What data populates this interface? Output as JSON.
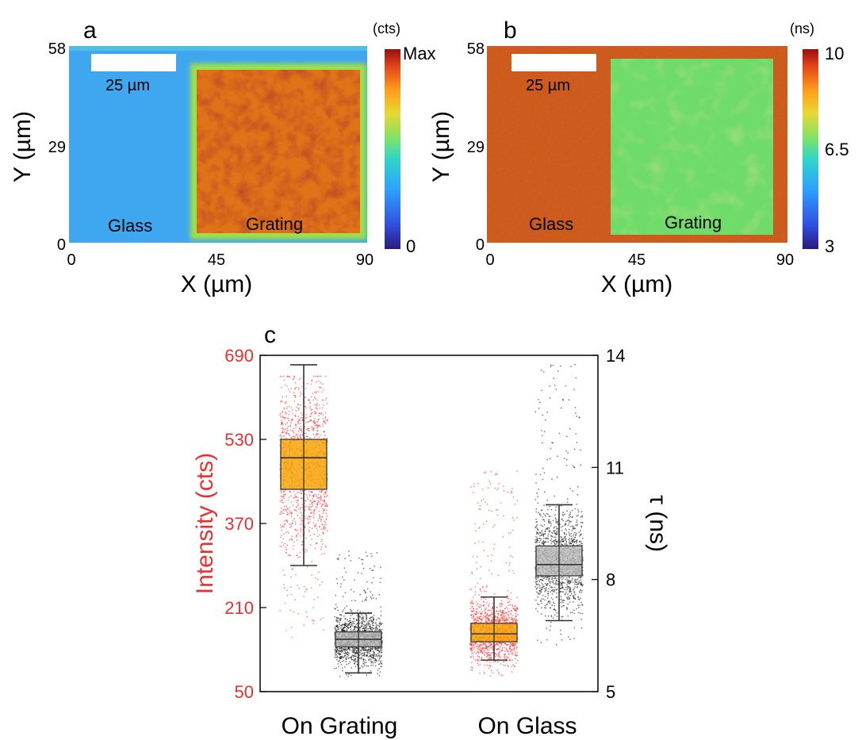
{
  "colors": {
    "intensity_axis": "#e8312f",
    "lifetime_axis": "#000000",
    "box_intensity": "#f5a300",
    "box_lifetime": "#b8b8b8",
    "points_intensity": "#ff1a1a",
    "points_lifetime": "#000000"
  },
  "chart_data": [
    {
      "panel": "a",
      "type": "heatmap",
      "xlabel": "X (µm)",
      "ylabel": "Y (µm)",
      "xticks": [
        "0",
        "45",
        "90"
      ],
      "yticks": [
        "0",
        "29",
        "58"
      ],
      "xlim": [
        0,
        90
      ],
      "ylim": [
        0,
        58
      ],
      "colorbar": {
        "unit": "(cts)",
        "ticks": [
          "Max",
          "0"
        ],
        "colormap": "jet"
      },
      "scalebar": "25 µm",
      "annotations": [
        "Glass",
        "Grating"
      ],
      "regions": [
        {
          "name": "Glass",
          "x": [
            0,
            38
          ],
          "level": 0.32
        },
        {
          "name": "Grating",
          "x": [
            38,
            88
          ],
          "level": 0.88
        }
      ]
    },
    {
      "panel": "b",
      "type": "heatmap",
      "xlabel": "X (µm)",
      "ylabel": "Y (µm)",
      "xticks": [
        "0",
        "45",
        "90"
      ],
      "yticks": [
        "0",
        "29",
        "58"
      ],
      "xlim": [
        0,
        90
      ],
      "ylim": [
        0,
        58
      ],
      "colorbar": {
        "unit": "(ns)",
        "ticks": [
          "10",
          "6.5",
          "3"
        ],
        "range": [
          3,
          10
        ],
        "colormap": "jet"
      },
      "scalebar": "25 µm",
      "annotations": [
        "Glass",
        "Grating"
      ],
      "regions": [
        {
          "name": "Glass",
          "x": [
            0,
            37
          ],
          "value": 8.9
        },
        {
          "name": "Grating",
          "x": [
            37,
            88
          ],
          "value": 6.3
        }
      ]
    },
    {
      "panel": "c",
      "type": "box",
      "categories": [
        "On Grating",
        "On Glass"
      ],
      "ylabel_left": "Intensity (cts)",
      "ylabel_right": "τ (ns)",
      "ylim_left": [
        50,
        690
      ],
      "yticks_left": [
        "50",
        "210",
        "370",
        "530",
        "690"
      ],
      "ylim_right": [
        5,
        14
      ],
      "yticks_right": [
        "5",
        "8",
        "11",
        "14"
      ],
      "series": [
        {
          "axis": "left",
          "boxes": [
            {
              "category": "On Grating",
              "whisker_low": 290,
              "q1": 435,
              "median": 495,
              "q3": 530,
              "whisker_high": 672,
              "points_low": 150,
              "points_high": 650
            },
            {
              "category": "On Glass",
              "whisker_low": 110,
              "q1": 145,
              "median": 160,
              "q3": 180,
              "whisker_high": 230,
              "points_low": 80,
              "points_high": 470
            }
          ]
        },
        {
          "axis": "right",
          "boxes": [
            {
              "category": "On Grating",
              "whisker_low": 5.5,
              "q1": 6.2,
              "median": 6.4,
              "q3": 6.6,
              "whisker_high": 7.1,
              "points_low": 5.4,
              "points_high": 8.8
            },
            {
              "category": "On Glass",
              "whisker_low": 6.9,
              "q1": 8.1,
              "median": 8.4,
              "q3": 8.9,
              "whisker_high": 10.0,
              "points_low": 6.2,
              "points_high": 13.8
            }
          ]
        }
      ]
    }
  ]
}
